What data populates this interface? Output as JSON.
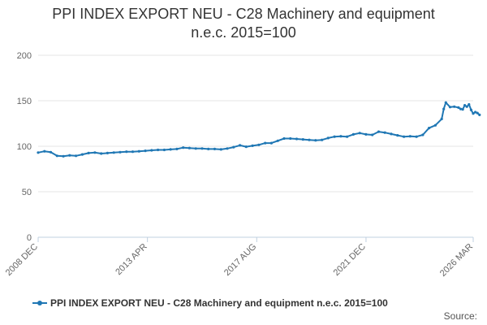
{
  "chart_data": {
    "type": "line",
    "title": "PPI INDEX EXPORT NEU - C28 Machinery and equipment n.e.c. 2015=100",
    "title_lines": [
      "PPI INDEX EXPORT NEU - C28 Machinery and equipment",
      "n.e.c. 2015=100"
    ],
    "xlabel": "",
    "ylabel": "",
    "x_start": "2008 DEC",
    "x_end": "2026 MAR",
    "x_ticks": [
      {
        "label": "2008 DEC",
        "date": "2008-12"
      },
      {
        "label": "2013 APR",
        "date": "2013-04"
      },
      {
        "label": "2017 AUG",
        "date": "2017-08"
      },
      {
        "label": "2021 DEC",
        "date": "2021-12"
      },
      {
        "label": "2026 MAR",
        "date": "2026-03"
      }
    ],
    "y_ticks": [
      0,
      50,
      100,
      150,
      200
    ],
    "ylim": [
      0,
      200
    ],
    "grid": true,
    "legend_position": "bottom-left",
    "color": "#1f77b4",
    "series": [
      {
        "name": "PPI INDEX EXPORT NEU - C28 Machinery and equipment n.e.c. 2015=100",
        "points": [
          [
            "2008-12",
            93.0
          ],
          [
            "2009-03",
            94.5
          ],
          [
            "2009-06",
            93.5
          ],
          [
            "2009-09",
            89.5
          ],
          [
            "2009-12",
            89.0
          ],
          [
            "2010-03",
            90.0
          ],
          [
            "2010-06",
            89.5
          ],
          [
            "2010-09",
            91.0
          ],
          [
            "2010-12",
            92.5
          ],
          [
            "2011-03",
            93.0
          ],
          [
            "2011-06",
            92.0
          ],
          [
            "2011-09",
            92.5
          ],
          [
            "2011-12",
            93.0
          ],
          [
            "2012-03",
            93.5
          ],
          [
            "2012-06",
            94.0
          ],
          [
            "2012-09",
            94.0
          ],
          [
            "2012-12",
            94.5
          ],
          [
            "2013-03",
            95.0
          ],
          [
            "2013-06",
            95.5
          ],
          [
            "2013-09",
            96.0
          ],
          [
            "2013-12",
            96.0
          ],
          [
            "2014-03",
            96.5
          ],
          [
            "2014-06",
            97.0
          ],
          [
            "2014-09",
            98.5
          ],
          [
            "2014-12",
            98.0
          ],
          [
            "2015-03",
            97.5
          ],
          [
            "2015-06",
            97.5
          ],
          [
            "2015-09",
            97.0
          ],
          [
            "2015-12",
            97.0
          ],
          [
            "2016-03",
            96.5
          ],
          [
            "2016-06",
            97.5
          ],
          [
            "2016-09",
            99.0
          ],
          [
            "2016-12",
            101.0
          ],
          [
            "2017-03",
            99.5
          ],
          [
            "2017-06",
            100.5
          ],
          [
            "2017-09",
            101.5
          ],
          [
            "2017-12",
            103.5
          ],
          [
            "2018-03",
            103.5
          ],
          [
            "2018-06",
            106.0
          ],
          [
            "2018-09",
            108.5
          ],
          [
            "2018-12",
            108.5
          ],
          [
            "2019-03",
            108.0
          ],
          [
            "2019-06",
            107.5
          ],
          [
            "2019-09",
            107.0
          ],
          [
            "2019-12",
            106.5
          ],
          [
            "2020-03",
            107.0
          ],
          [
            "2020-06",
            109.0
          ],
          [
            "2020-09",
            110.5
          ],
          [
            "2020-12",
            111.0
          ],
          [
            "2021-03",
            110.5
          ],
          [
            "2021-06",
            113.0
          ],
          [
            "2021-09",
            114.5
          ],
          [
            "2021-12",
            113.0
          ],
          [
            "2022-03",
            112.5
          ],
          [
            "2022-06",
            116.0
          ],
          [
            "2022-09",
            115.0
          ],
          [
            "2022-12",
            113.5
          ],
          [
            "2023-03",
            112.0
          ],
          [
            "2023-06",
            110.5
          ],
          [
            "2023-09",
            111.0
          ],
          [
            "2023-12",
            110.5
          ],
          [
            "2024-03",
            112.5
          ],
          [
            "2024-06",
            120.0
          ],
          [
            "2024-09",
            123.0
          ],
          [
            "2024-12",
            130.0
          ],
          [
            "2025-01",
            141.0
          ],
          [
            "2025-02",
            148.0
          ],
          [
            "2025-04",
            143.0
          ],
          [
            "2025-06",
            143.5
          ],
          [
            "2025-08",
            142.5
          ],
          [
            "2025-09",
            141.0
          ],
          [
            "2025-10",
            140.5
          ],
          [
            "2025-11",
            145.0
          ],
          [
            "2025-12",
            143.5
          ],
          [
            "2026-01",
            146.0
          ],
          [
            "2026-02",
            140.0
          ],
          [
            "2026-03",
            136.0
          ],
          [
            "2026-04",
            137.5
          ],
          [
            "2026-05",
            136.5
          ],
          [
            "2026-06",
            134.5
          ]
        ]
      }
    ]
  },
  "footer": {
    "source_label": "Source:"
  }
}
